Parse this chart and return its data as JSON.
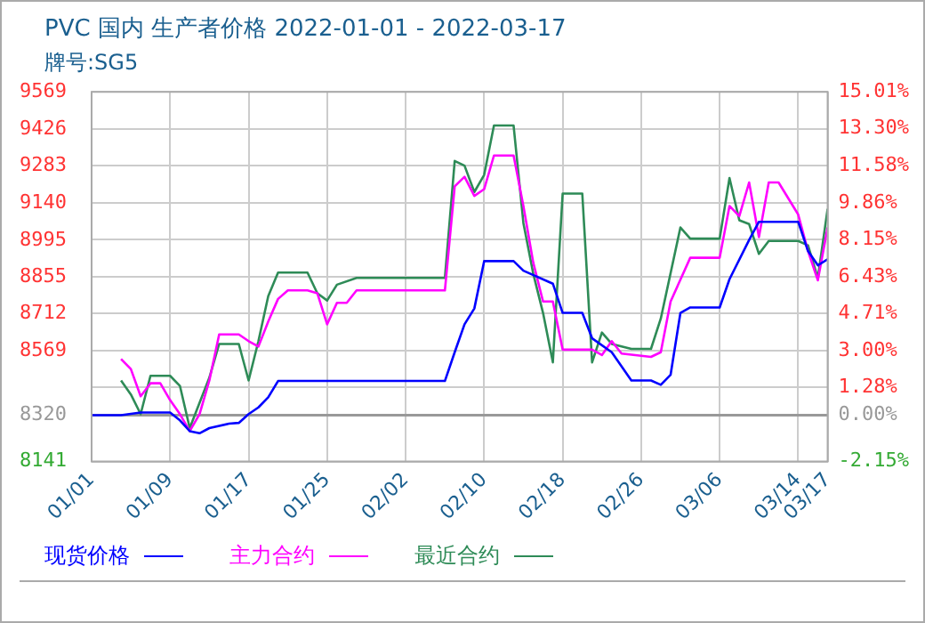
{
  "chart_data": {
    "type": "line",
    "title": "PVC 国内 生产者价格 2022-01-01 - 2022-03-17",
    "subtitle": "牌号:SG5",
    "xlim": [
      "2022-01-01",
      "2022-03-17"
    ],
    "xticks": [
      {
        "value": "2022-01-01",
        "label": "01/01"
      },
      {
        "value": "2022-01-09",
        "label": "01/09"
      },
      {
        "value": "2022-01-17",
        "label": "01/17"
      },
      {
        "value": "2022-01-25",
        "label": "01/25"
      },
      {
        "value": "2022-02-02",
        "label": "02/02"
      },
      {
        "value": "2022-02-10",
        "label": "02/10"
      },
      {
        "value": "2022-02-18",
        "label": "02/18"
      },
      {
        "value": "2022-02-26",
        "label": "02/26"
      },
      {
        "value": "2022-03-06",
        "label": "03/06"
      },
      {
        "value": "2022-03-14",
        "label": "03/14"
      },
      {
        "value": "2022-03-17",
        "label": "03/17"
      }
    ],
    "ylim": [
      8141,
      9569
    ],
    "yticks": [
      8141,
      8320,
      8569,
      8712,
      8855,
      8995,
      9140,
      9283,
      9426,
      9569
    ],
    "y2lim": [
      -2.15,
      15.01
    ],
    "y2ticks": [
      {
        "value": -2.15,
        "label": "-2.15%"
      },
      {
        "value": 0,
        "label": "0.00%"
      },
      {
        "value": 1.28,
        "label": "1.28%"
      },
      {
        "value": 3.0,
        "label": "3.00%"
      },
      {
        "value": 4.71,
        "label": "4.71%"
      },
      {
        "value": 6.43,
        "label": "6.43%"
      },
      {
        "value": 8.15,
        "label": "8.15%"
      },
      {
        "value": 9.86,
        "label": "9.86%"
      },
      {
        "value": 11.58,
        "label": "11.58%"
      },
      {
        "value": 13.3,
        "label": "13.30%"
      },
      {
        "value": 15.01,
        "label": "15.01%"
      }
    ],
    "ref_lines": [
      {
        "axis": "y2",
        "value": 0,
        "color": "#999999",
        "line_style": "solid"
      }
    ],
    "grid": true,
    "legend": "bottom",
    "marker": "none",
    "line_style": "solid",
    "series": [
      {
        "name": "现货价格",
        "color": "#0000ff",
        "x": [
          "2022-01-01",
          "2022-01-04",
          "2022-01-06",
          "2022-01-09",
          "2022-01-10",
          "2022-01-11",
          "2022-01-12",
          "2022-01-13",
          "2022-01-15",
          "2022-01-16",
          "2022-01-17",
          "2022-01-18",
          "2022-01-19",
          "2022-01-20",
          "2022-02-06",
          "2022-02-07",
          "2022-02-08",
          "2022-02-09",
          "2022-02-10",
          "2022-02-13",
          "2022-02-14",
          "2022-02-17",
          "2022-02-18",
          "2022-02-20",
          "2022-02-21",
          "2022-02-23",
          "2022-02-25",
          "2022-02-27",
          "2022-02-28",
          "2022-03-01",
          "2022-03-02",
          "2022-03-03",
          "2022-03-06",
          "2022-03-07",
          "2022-03-09",
          "2022-03-10",
          "2022-03-14",
          "2022-03-15",
          "2022-03-16",
          "2022-03-17"
        ],
        "values": [
          8320,
          8320,
          8330,
          8330,
          8300,
          8258,
          8250,
          8270,
          8287,
          8290,
          8324,
          8350,
          8389,
          8452,
          8452,
          8563,
          8671,
          8732,
          8915,
          8915,
          8878,
          8828,
          8715,
          8715,
          8617,
          8563,
          8454,
          8454,
          8437,
          8476,
          8715,
          8736,
          8736,
          8845,
          8997,
          9067,
          9067,
          8954,
          8899,
          8922
        ]
      },
      {
        "name": "主力合约",
        "color": "#ff00ff",
        "x": [
          "2022-01-04",
          "2022-01-05",
          "2022-01-06",
          "2022-01-07",
          "2022-01-08",
          "2022-01-09",
          "2022-01-10",
          "2022-01-11",
          "2022-01-12",
          "2022-01-13",
          "2022-01-14",
          "2022-01-16",
          "2022-01-17",
          "2022-01-18",
          "2022-01-19",
          "2022-01-20",
          "2022-01-21",
          "2022-01-23",
          "2022-01-24",
          "2022-01-25",
          "2022-01-26",
          "2022-01-27",
          "2022-01-28",
          "2022-02-06",
          "2022-02-07",
          "2022-02-08",
          "2022-02-09",
          "2022-02-10",
          "2022-02-11",
          "2022-02-13",
          "2022-02-14",
          "2022-02-15",
          "2022-02-16",
          "2022-02-17",
          "2022-02-18",
          "2022-02-21",
          "2022-02-22",
          "2022-02-23",
          "2022-02-24",
          "2022-02-27",
          "2022-02-28",
          "2022-03-01",
          "2022-03-03",
          "2022-03-06",
          "2022-03-07",
          "2022-03-08",
          "2022-03-09",
          "2022-03-10",
          "2022-03-11",
          "2022-03-12",
          "2022-03-14",
          "2022-03-15",
          "2022-03-16",
          "2022-03-17"
        ],
        "values": [
          8537,
          8498,
          8393,
          8443,
          8443,
          8378,
          8324,
          8258,
          8324,
          8454,
          8632,
          8632,
          8606,
          8585,
          8682,
          8769,
          8802,
          8802,
          8791,
          8671,
          8754,
          8754,
          8802,
          8802,
          9204,
          9241,
          9167,
          9193,
          9323,
          9323,
          9128,
          8910,
          8759,
          8759,
          8573,
          8573,
          8552,
          8606,
          8558,
          8545,
          8563,
          8759,
          8928,
          8928,
          9128,
          9089,
          9219,
          9008,
          9219,
          9219,
          9095,
          8954,
          8841,
          9045
        ]
      },
      {
        "name": "最近合约",
        "color": "#2e8b57",
        "x": [
          "2022-01-04",
          "2022-01-05",
          "2022-01-06",
          "2022-01-07",
          "2022-01-09",
          "2022-01-10",
          "2022-01-11",
          "2022-01-13",
          "2022-01-14",
          "2022-01-16",
          "2022-01-17",
          "2022-01-18",
          "2022-01-19",
          "2022-01-20",
          "2022-01-23",
          "2022-01-24",
          "2022-01-25",
          "2022-01-26",
          "2022-01-28",
          "2022-02-06",
          "2022-02-07",
          "2022-02-08",
          "2022-02-09",
          "2022-02-10",
          "2022-02-11",
          "2022-02-13",
          "2022-02-14",
          "2022-02-15",
          "2022-02-16",
          "2022-02-17",
          "2022-02-18",
          "2022-02-20",
          "2022-02-21",
          "2022-02-22",
          "2022-02-23",
          "2022-02-25",
          "2022-02-27",
          "2022-02-28",
          "2022-03-02",
          "2022-03-03",
          "2022-03-06",
          "2022-03-07",
          "2022-03-08",
          "2022-03-09",
          "2022-03-10",
          "2022-03-11",
          "2022-03-14",
          "2022-03-15",
          "2022-03-16",
          "2022-03-17"
        ],
        "values": [
          8454,
          8400,
          8324,
          8472,
          8472,
          8433,
          8270,
          8465,
          8595,
          8595,
          8454,
          8606,
          8780,
          8871,
          8871,
          8791,
          8763,
          8824,
          8850,
          8850,
          9302,
          9284,
          9182,
          9248,
          9439,
          9439,
          9062,
          8867,
          8715,
          8524,
          9176,
          9176,
          8524,
          8639,
          8595,
          8576,
          8576,
          8693,
          9045,
          9002,
          9002,
          9236,
          9073,
          9058,
          8943,
          8993,
          8993,
          8976,
          8850,
          9117
        ]
      }
    ]
  }
}
